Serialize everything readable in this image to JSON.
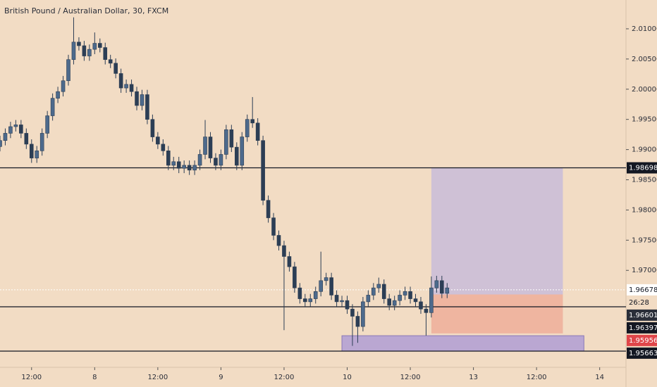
{
  "chart_data": {
    "type": "candlestick",
    "title": "British Pound / Australian Dollar, 30, FXCM",
    "x": [
      0,
      2,
      4,
      6,
      8,
      10,
      12,
      14,
      16,
      18,
      20,
      22,
      24,
      26,
      28,
      30,
      32,
      34,
      36,
      38,
      40,
      42,
      44,
      46,
      48,
      50,
      52,
      54,
      56,
      58,
      60,
      62,
      64,
      66,
      68,
      70,
      72,
      74,
      76,
      78,
      80,
      82,
      84,
      86,
      88,
      90,
      92,
      94,
      96,
      98,
      100,
      102,
      104,
      106,
      108,
      110,
      112,
      114,
      116,
      118,
      120,
      122,
      124,
      126,
      128,
      130,
      132,
      134,
      136,
      138,
      140,
      142,
      144,
      146,
      148,
      150,
      152,
      154,
      156,
      158,
      160,
      162,
      164,
      166,
      168,
      170
    ],
    "open": [
      1.9905,
      1.9915,
      1.9927,
      1.9938,
      1.9941,
      1.9927,
      1.9909,
      1.9886,
      1.9898,
      1.9927,
      1.9956,
      1.9985,
      1.9996,
      2.0014,
      2.0049,
      2.0078,
      2.0072,
      2.0055,
      2.0066,
      2.0076,
      2.0069,
      2.0049,
      2.0043,
      2.0026,
      2.0002,
      2.0008,
      1.9996,
      1.9973,
      1.9991,
      1.995,
      1.9921,
      1.9909,
      1.9898,
      1.9874,
      1.988,
      1.9869,
      1.9874,
      1.9866,
      1.9874,
      1.9892,
      1.9921,
      1.9886,
      1.9874,
      1.9892,
      1.9933,
      1.9904,
      1.9874,
      1.9921,
      1.995,
      1.9944,
      1.9915,
      1.9816,
      1.9787,
      1.9758,
      1.9741,
      1.9723,
      1.9706,
      1.9671,
      1.9653,
      1.9648,
      1.9653,
      1.9665,
      1.9683,
      1.9688,
      1.9659,
      1.9648,
      1.965,
      1.9636,
      1.9624,
      1.9607,
      1.9648,
      1.9659,
      1.9671,
      1.9677,
      1.9653,
      1.9642,
      1.965,
      1.9659,
      1.9665,
      1.9653,
      1.9648,
      1.9636,
      1.963,
      1.9671,
      1.9683,
      1.9662
    ],
    "high": [
      1.9923,
      1.9935,
      1.9946,
      1.9949,
      1.9949,
      1.9935,
      1.9917,
      1.9906,
      1.9935,
      1.9964,
      1.9993,
      2.0004,
      2.0022,
      2.0057,
      2.0119,
      2.0086,
      2.008,
      2.0074,
      2.0094,
      2.0084,
      2.0077,
      2.0057,
      2.0051,
      2.0034,
      2.0016,
      2.0016,
      2.0004,
      1.9999,
      1.9999,
      1.9958,
      1.9929,
      1.9917,
      1.9906,
      1.9888,
      1.9888,
      1.9882,
      1.9882,
      1.9882,
      1.99,
      1.9949,
      1.9929,
      1.9894,
      1.99,
      1.9941,
      1.9941,
      1.9912,
      1.9929,
      1.9958,
      1.9987,
      1.9952,
      1.9923,
      1.9824,
      1.9795,
      1.9766,
      1.9749,
      1.9731,
      1.9714,
      1.9679,
      1.9661,
      1.9661,
      1.9673,
      1.9731,
      1.9696,
      1.9696,
      1.9667,
      1.9658,
      1.9658,
      1.9644,
      1.9632,
      1.9656,
      1.9667,
      1.9679,
      1.9688,
      1.9685,
      1.9661,
      1.9658,
      1.9667,
      1.9673,
      1.9673,
      1.9661,
      1.9656,
      1.9644,
      1.969,
      1.9691,
      1.9691,
      1.9679
    ],
    "low": [
      1.9897,
      1.9907,
      1.9919,
      1.993,
      1.9919,
      1.9901,
      1.9878,
      1.9878,
      1.989,
      1.9919,
      1.9948,
      1.9977,
      1.9988,
      2.0006,
      2.0041,
      2.0064,
      2.0047,
      2.0047,
      2.0058,
      2.0061,
      2.0041,
      2.0035,
      2.0018,
      1.9994,
      1.9994,
      1.9988,
      1.9965,
      1.9965,
      1.9942,
      1.9913,
      1.9901,
      1.989,
      1.9866,
      1.9866,
      1.9861,
      1.9861,
      1.9858,
      1.9858,
      1.9866,
      1.9884,
      1.9878,
      1.9866,
      1.9866,
      1.9884,
      1.9896,
      1.9866,
      1.9866,
      1.9913,
      1.9936,
      1.9907,
      1.9808,
      1.9779,
      1.975,
      1.9733,
      1.9601,
      1.9698,
      1.9663,
      1.9645,
      1.964,
      1.964,
      1.9645,
      1.9657,
      1.9675,
      1.9651,
      1.964,
      1.964,
      1.9628,
      1.9575,
      1.958,
      1.9599,
      1.964,
      1.9651,
      1.9663,
      1.9645,
      1.9634,
      1.9634,
      1.9642,
      1.9651,
      1.9645,
      1.964,
      1.9628,
      1.9592,
      1.9622,
      1.9663,
      1.9654,
      1.9654
    ],
    "close": [
      1.9915,
      1.9927,
      1.9938,
      1.9941,
      1.9927,
      1.9909,
      1.9886,
      1.9898,
      1.9927,
      1.9956,
      1.9985,
      1.9996,
      2.0014,
      2.0049,
      2.0078,
      2.0072,
      2.0055,
      2.0066,
      2.0076,
      2.0069,
      2.0049,
      2.0043,
      2.0026,
      2.0002,
      2.0008,
      1.9996,
      1.9973,
      1.9991,
      1.995,
      1.9921,
      1.9909,
      1.9898,
      1.9874,
      1.988,
      1.9869,
      1.9874,
      1.9866,
      1.9874,
      1.9892,
      1.9921,
      1.9886,
      1.9874,
      1.9892,
      1.9933,
      1.9904,
      1.9874,
      1.9921,
      1.995,
      1.9944,
      1.9915,
      1.9816,
      1.9787,
      1.9758,
      1.9741,
      1.9723,
      1.9706,
      1.9671,
      1.9653,
      1.9648,
      1.9653,
      1.9665,
      1.9683,
      1.9688,
      1.9659,
      1.9648,
      1.965,
      1.9636,
      1.9624,
      1.9607,
      1.9648,
      1.9659,
      1.9671,
      1.9677,
      1.9653,
      1.9642,
      1.965,
      1.9659,
      1.9665,
      1.9653,
      1.9648,
      1.9636,
      1.963,
      1.9671,
      1.9683,
      1.9662,
      1.9671
    ],
    "color": "#4d6a8c",
    "xlim": [
      0,
      238
    ],
    "xticks": [
      {
        "value": 12,
        "label": "12:00"
      },
      {
        "value": 36,
        "label": "8"
      },
      {
        "value": 60,
        "label": "12:00"
      },
      {
        "value": 84,
        "label": "9"
      },
      {
        "value": 108,
        "label": "12:00"
      },
      {
        "value": 132,
        "label": "10"
      },
      {
        "value": 156,
        "label": "12:00"
      },
      {
        "value": 180,
        "label": "13"
      },
      {
        "value": 204,
        "label": "12:00"
      },
      {
        "value": 228,
        "label": "14"
      }
    ],
    "ylim": [
      1.95395,
      2.01477
    ],
    "yticks": [
      {
        "value": 1.97,
        "label": "1.97000"
      },
      {
        "value": 1.975,
        "label": "1.97500"
      },
      {
        "value": 1.98,
        "label": "1.98000"
      },
      {
        "value": 1.985,
        "label": "1.98500"
      },
      {
        "value": 1.99,
        "label": "1.99000"
      },
      {
        "value": 1.995,
        "label": "1.99500"
      },
      {
        "value": 2.0,
        "label": "2.00000"
      },
      {
        "value": 2.005,
        "label": "2.00500"
      },
      {
        "value": 2.01,
        "label": "2.01000"
      }
    ],
    "zones": [
      {
        "x": [
          164,
          214
        ],
        "y": [
          1.96601,
          1.98698
        ],
        "color": "#cfc1d6"
      },
      {
        "x": [
          164,
          214
        ],
        "y": [
          1.95956,
          1.96601
        ],
        "color": "#efb5a0"
      },
      {
        "x": [
          130,
          222
        ],
        "y": [
          1.95663,
          1.95918
        ],
        "color": "#baa7d2"
      }
    ],
    "hlines": [
      1.98698,
      1.96397,
      1.95663
    ],
    "last_price": 1.96678,
    "countdown": "26:28",
    "price_labels": [
      {
        "value": 1.98698,
        "color": "#131722"
      },
      {
        "value": 1.96601,
        "color": "#2a2e39"
      },
      {
        "value": 1.96397,
        "color": "#131722"
      },
      {
        "value": 1.95956,
        "color": "#e0464a"
      },
      {
        "value": 1.95663,
        "color": "#131722"
      }
    ]
  }
}
